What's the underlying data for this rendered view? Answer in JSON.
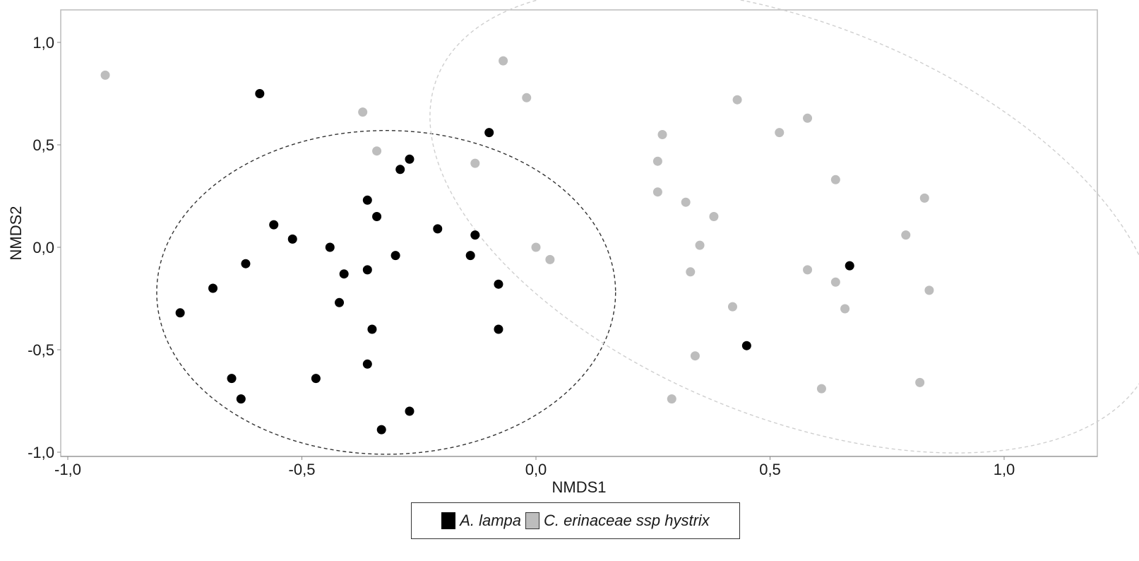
{
  "chart_data": {
    "type": "scatter",
    "title": "",
    "xlabel": "NMDS1",
    "ylabel": "NMDS2",
    "xlim": [
      -1.0,
      1.2
    ],
    "ylim": [
      -1.02,
      1.17
    ],
    "grid": false,
    "legend_position": "bottom",
    "x_ticks": [
      -1.0,
      -0.5,
      0.0,
      0.5,
      1.0
    ],
    "x_tick_labels": [
      "-1,0",
      "-0,5",
      "0,0",
      "0,5",
      "1,0"
    ],
    "y_ticks": [
      -1.0,
      -0.5,
      0.0,
      0.5,
      1.0
    ],
    "y_tick_labels": [
      "-1,0",
      "-0,5",
      "0,0",
      "0,5",
      "1,0"
    ],
    "series": [
      {
        "name": "A. lampa",
        "color": "#000000",
        "points": [
          [
            -0.59,
            0.75
          ],
          [
            -0.1,
            0.56
          ],
          [
            -0.27,
            0.43
          ],
          [
            -0.29,
            0.38
          ],
          [
            -0.36,
            0.23
          ],
          [
            -0.34,
            0.15
          ],
          [
            -0.56,
            0.11
          ],
          [
            -0.52,
            0.04
          ],
          [
            -0.21,
            0.09
          ],
          [
            -0.13,
            0.06
          ],
          [
            -0.44,
            -0.0
          ],
          [
            -0.3,
            -0.04
          ],
          [
            -0.14,
            -0.04
          ],
          [
            -0.62,
            -0.08
          ],
          [
            -0.36,
            -0.11
          ],
          [
            -0.41,
            -0.13
          ],
          [
            -0.69,
            -0.2
          ],
          [
            -0.08,
            -0.18
          ],
          [
            -0.76,
            -0.32
          ],
          [
            -0.42,
            -0.27
          ],
          [
            -0.08,
            -0.4
          ],
          [
            -0.35,
            -0.4
          ],
          [
            0.67,
            -0.09
          ],
          [
            0.45,
            -0.48
          ],
          [
            -0.36,
            -0.57
          ],
          [
            -0.47,
            -0.64
          ],
          [
            -0.65,
            -0.64
          ],
          [
            -0.63,
            -0.74
          ],
          [
            -0.27,
            -0.8
          ],
          [
            -0.33,
            -0.89
          ]
        ],
        "ellipse": {
          "cx": -0.32,
          "cy": -0.22,
          "rx": 0.49,
          "ry": 0.79,
          "stroke": "#333333"
        }
      },
      {
        "name": "C. erinaceae ssp hystrix",
        "color": "#bdbdbd",
        "points": [
          [
            -0.92,
            0.84
          ],
          [
            -0.07,
            0.91
          ],
          [
            -0.02,
            0.73
          ],
          [
            -0.37,
            0.66
          ],
          [
            -0.34,
            0.47
          ],
          [
            -0.13,
            0.41
          ],
          [
            0.43,
            0.72
          ],
          [
            0.58,
            0.63
          ],
          [
            0.52,
            0.56
          ],
          [
            0.27,
            0.55
          ],
          [
            0.26,
            0.42
          ],
          [
            0.64,
            0.33
          ],
          [
            0.26,
            0.27
          ],
          [
            0.83,
            0.24
          ],
          [
            0.32,
            0.22
          ],
          [
            0.38,
            0.15
          ],
          [
            0.79,
            0.06
          ],
          [
            -0.0,
            0.0
          ],
          [
            0.35,
            0.01
          ],
          [
            0.03,
            -0.06
          ],
          [
            0.33,
            -0.12
          ],
          [
            0.58,
            -0.11
          ],
          [
            0.64,
            -0.17
          ],
          [
            0.84,
            -0.21
          ],
          [
            0.42,
            -0.29
          ],
          [
            0.66,
            -0.3
          ],
          [
            0.34,
            -0.53
          ],
          [
            0.82,
            -0.66
          ],
          [
            0.61,
            -0.69
          ],
          [
            0.29,
            -0.74
          ]
        ],
        "ellipse": {
          "cx": 0.55,
          "cy": 0.13,
          "rx": 0.82,
          "ry": 0.96,
          "rotation_deg": 22,
          "stroke": "#cfcfcf"
        }
      }
    ]
  },
  "axes": {
    "x_title": "NMDS1",
    "y_title": "NMDS2"
  },
  "legend": {
    "items": [
      {
        "label": "A. lampa",
        "color": "#000000"
      },
      {
        "label": "C. erinaceae ssp hystrix",
        "color": "#bdbdbd"
      }
    ]
  }
}
